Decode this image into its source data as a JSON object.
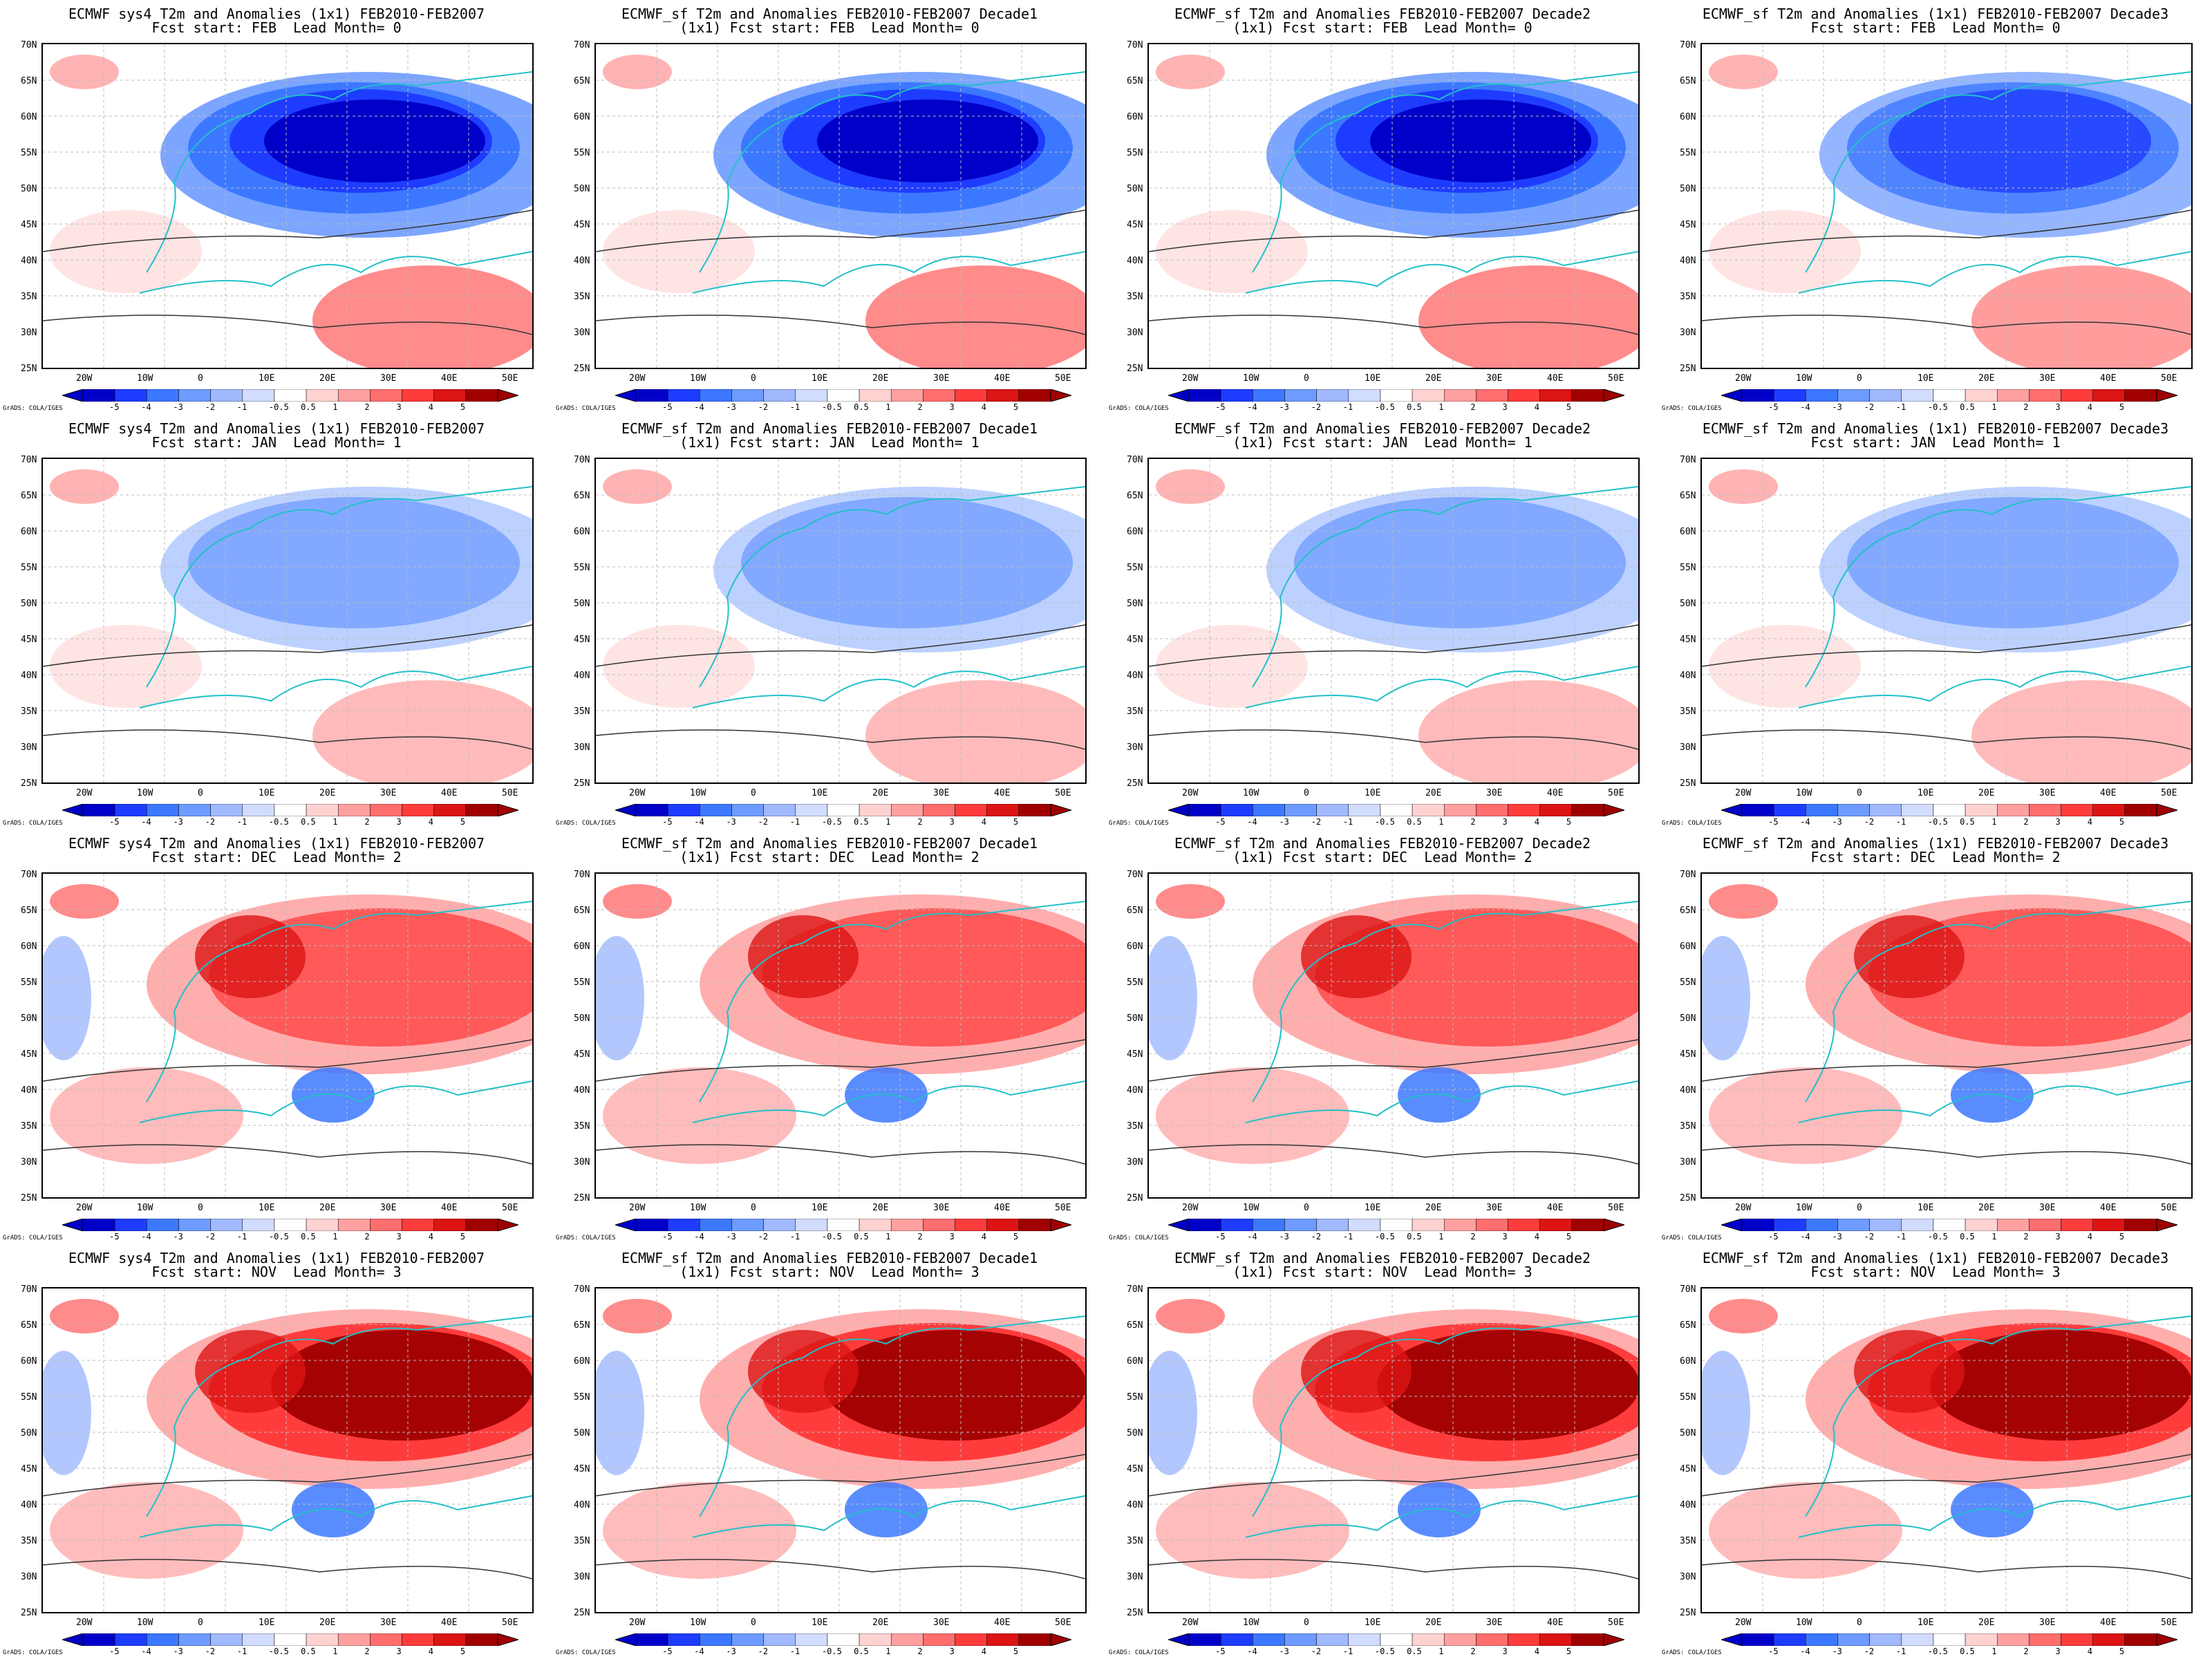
{
  "lat_labels": [
    "70N",
    "65N",
    "60N",
    "55N",
    "50N",
    "45N",
    "40N",
    "35N",
    "30N",
    "25N"
  ],
  "lon_labels": [
    "20W",
    "10W",
    "0",
    "10E",
    "20E",
    "30E",
    "40E",
    "50E"
  ],
  "colorbar_labels": [
    "-5",
    "-4",
    "-3",
    "-2",
    "-1",
    "-0.5",
    "0.5",
    "1",
    "2",
    "3",
    "4",
    "5"
  ],
  "colorbar_colors": [
    "#0000c8",
    "#1e3cff",
    "#3c78ff",
    "#6e9bff",
    "#a0b9ff",
    "#d2dcff",
    "#ffffff",
    "#ffd2d2",
    "#ffa0a0",
    "#ff6e6e",
    "#ff3c3c",
    "#dc1414",
    "#a00000"
  ],
  "credit": "GrADS: COLA/IGES",
  "panels": [
    {
      "t1": "ECMWF sys4 T2m and Anomalies (1x1) FEB2010-FEB2007",
      "t2": "Fcst start: FEB  Lead Month= 0",
      "pattern": "cold-strong"
    },
    {
      "t1": "ECMWF_sf T2m and Anomalies FEB2010-FEB2007 Decade1",
      "t2": "(1x1) Fcst start: FEB  Lead Month= 0",
      "pattern": "cold-strong"
    },
    {
      "t1": "ECMWF_sf T2m and Anomalies FEB2010-FEB2007 Decade2",
      "t2": "(1x1) Fcst start: FEB  Lead Month= 0",
      "pattern": "cold-strong"
    },
    {
      "t1": "ECMWF_sf T2m and Anomalies (1x1) FEB2010-FEB2007 Decade3",
      "t2": "Fcst start: FEB  Lead Month= 0",
      "pattern": "cold-medium"
    },
    {
      "t1": "ECMWF sys4 T2m and Anomalies (1x1) FEB2010-FEB2007",
      "t2": "Fcst start: JAN  Lead Month= 1",
      "pattern": "cold-weak"
    },
    {
      "t1": "ECMWF_sf T2m and Anomalies FEB2010-FEB2007 Decade1",
      "t2": "(1x1) Fcst start: JAN  Lead Month= 1",
      "pattern": "cold-weak"
    },
    {
      "t1": "ECMWF_sf T2m and Anomalies FEB2010-FEB2007 Decade2",
      "t2": "(1x1) Fcst start: JAN  Lead Month= 1",
      "pattern": "cold-weak"
    },
    {
      "t1": "ECMWF_sf T2m and Anomalies (1x1) FEB2010-FEB2007 Decade3",
      "t2": "Fcst start: JAN  Lead Month= 1",
      "pattern": "cold-weak"
    },
    {
      "t1": "ECMWF sys4 T2m and Anomalies (1x1) FEB2010-FEB2007",
      "t2": "Fcst start: DEC  Lead Month= 2",
      "pattern": "warm-medium"
    },
    {
      "t1": "ECMWF_sf T2m and Anomalies FEB2010-FEB2007 Decade1",
      "t2": "(1x1) Fcst start: DEC  Lead Month= 2",
      "pattern": "warm-medium"
    },
    {
      "t1": "ECMWF_sf T2m and Anomalies FEB2010-FEB2007 Decade2",
      "t2": "(1x1) Fcst start: DEC  Lead Month= 2",
      "pattern": "warm-medium"
    },
    {
      "t1": "ECMWF_sf T2m and Anomalies (1x1) FEB2010-FEB2007 Decade3",
      "t2": "Fcst start: DEC  Lead Month= 2",
      "pattern": "warm-medium"
    },
    {
      "t1": "ECMWF sys4 T2m and Anomalies (1x1) FEB2010-FEB2007",
      "t2": "Fcst start: NOV  Lead Month= 3",
      "pattern": "warm-strong"
    },
    {
      "t1": "ECMWF_sf T2m and Anomalies FEB2010-FEB2007 Decade1",
      "t2": "(1x1) Fcst start: NOV  Lead Month= 3",
      "pattern": "warm-strong"
    },
    {
      "t1": "ECMWF_sf T2m and Anomalies FEB2010-FEB2007 Decade2",
      "t2": "(1x1) Fcst start: NOV  Lead Month= 3",
      "pattern": "warm-strong"
    },
    {
      "t1": "ECMWF_sf T2m and Anomalies (1x1) FEB2010-FEB2007 Decade3",
      "t2": "Fcst start: NOV  Lead Month= 3",
      "pattern": "warm-strong"
    }
  ]
}
